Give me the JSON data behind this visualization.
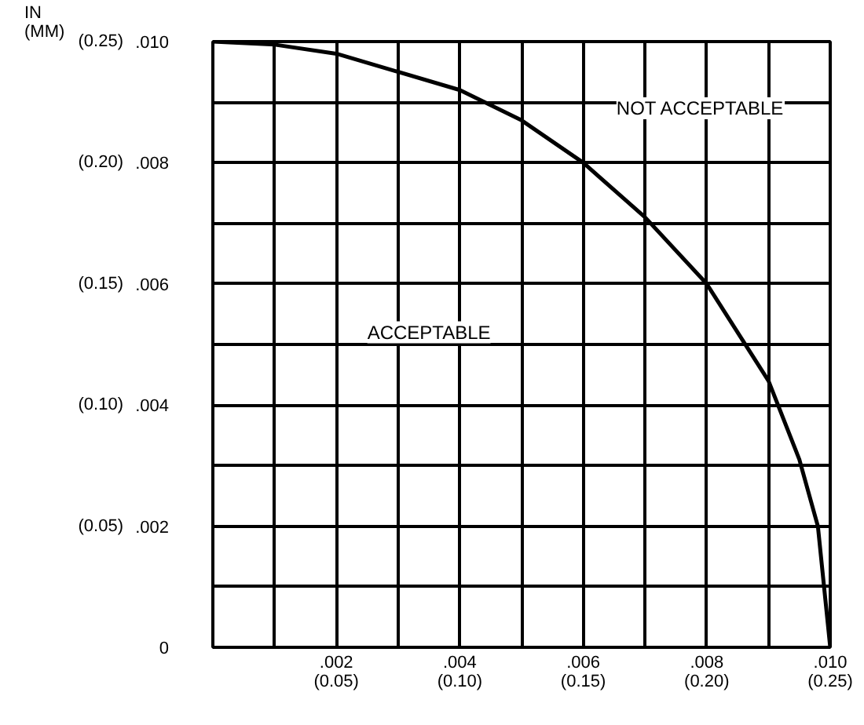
{
  "chart_data": {
    "type": "line",
    "x": [
      0,
      0.001,
      0.002,
      0.003,
      0.004,
      0.005,
      0.006,
      0.007,
      0.008,
      0.009,
      0.0095,
      0.0098,
      0.01
    ],
    "series": [
      {
        "color": "#000000",
        "values": [
          0.01,
          0.00995,
          0.0098,
          0.0095,
          0.0092,
          0.0087,
          0.008,
          0.0071,
          0.006,
          0.0044,
          0.0031,
          0.002,
          0
        ]
      }
    ],
    "xlim": [
      0,
      0.01
    ],
    "ylim": [
      0,
      0.01
    ],
    "xticks": [
      {
        "value": 0,
        "label": null
      },
      {
        "value": 0.001,
        "label": null
      },
      {
        "value": 0.002,
        "label": ".002"
      },
      {
        "value": 0.003,
        "label": null
      },
      {
        "value": 0.004,
        "label": ".004"
      },
      {
        "value": 0.005,
        "label": null
      },
      {
        "value": 0.006,
        "label": ".006"
      },
      {
        "value": 0.007,
        "label": null
      },
      {
        "value": 0.008,
        "label": ".008"
      },
      {
        "value": 0.009,
        "label": null
      },
      {
        "value": 0.01,
        "label": ".010"
      }
    ],
    "yticks": [
      0,
      {
        "value": 0.001,
        "label": null
      },
      {
        "value": 0.002,
        "label": ".002"
      },
      {
        "value": 0.003,
        "label": null
      },
      {
        "value": 0.004,
        "label": ".004"
      },
      {
        "value": 0.005,
        "label": null
      },
      {
        "value": 0.006,
        "label": ".006"
      },
      {
        "value": 0.007,
        "label": null
      },
      {
        "value": 0.008,
        "label": ".008"
      },
      {
        "value": 0.009,
        "label": null
      },
      {
        "value": 0.01,
        "label": ".010"
      }
    ],
    "x2lim": [
      0,
      0.25
    ],
    "x2ticks": [
      {
        "value": 0.05,
        "label": "(0.05)"
      },
      {
        "value": 0.1,
        "label": "(0.10)"
      },
      {
        "value": 0.15,
        "label": "(0.15)"
      },
      {
        "value": 0.2,
        "label": "(0.20)"
      },
      {
        "value": 0.25,
        "label": "(0.25)"
      }
    ],
    "y2lim": [
      0,
      0.25
    ],
    "y2ticks": [
      {
        "value": 0.05,
        "label": "(0.05)"
      },
      {
        "value": 0.1,
        "label": "(0.10)"
      },
      {
        "value": 0.15,
        "label": "(0.15)"
      },
      {
        "value": 0.2,
        "label": "(0.20)"
      },
      {
        "value": 0.25,
        "label": "(0.25)"
      }
    ],
    "grid": true,
    "line_style": "solid",
    "annotations": [
      "IN\n(MM)",
      "NOT ACCEPTABLE",
      "ACCEPTABLE"
    ]
  }
}
